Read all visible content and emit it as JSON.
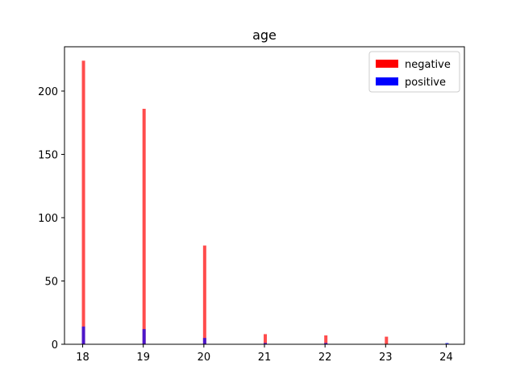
{
  "chart_data": {
    "type": "bar",
    "title": "age",
    "xlabel": "",
    "ylabel": "",
    "x_ticks": [
      18,
      19,
      20,
      21,
      22,
      23,
      24
    ],
    "y_ticks": [
      0,
      50,
      100,
      150,
      200
    ],
    "xlim": [
      17.7,
      24.3
    ],
    "ylim": [
      0,
      235
    ],
    "grid": false,
    "legend_position": "top-right",
    "series": [
      {
        "name": "negative",
        "color": "#ff0000",
        "opacity": 0.7,
        "x": [
          18,
          19,
          20,
          21,
          22,
          23,
          24
        ],
        "values": [
          224,
          186,
          78,
          8,
          7,
          6,
          0
        ]
      },
      {
        "name": "positive",
        "color": "#0000ff",
        "opacity": 0.7,
        "x": [
          18,
          19,
          20,
          21,
          22,
          23,
          24
        ],
        "values": [
          14,
          12,
          5,
          1,
          1,
          0,
          1
        ]
      }
    ]
  }
}
